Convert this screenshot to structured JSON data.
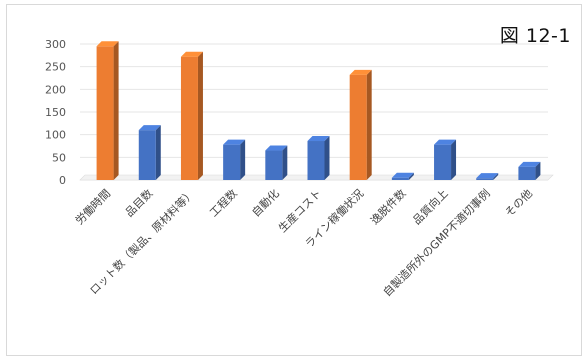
{
  "figure_label": "図 12-1",
  "chart_data": {
    "type": "bar",
    "categories": [
      "労働時間",
      "品目数",
      "ロット数（製品、原材料等）",
      "工程数",
      "自動化",
      "生産コスト",
      "ライン稼働状況",
      "逸脱件数",
      "品質向上",
      "自製造所外のGMP不適切事例",
      "その他"
    ],
    "values": [
      295,
      110,
      272,
      78,
      65,
      86,
      232,
      5,
      78,
      4,
      29
    ],
    "bar_colors": [
      "#ED7D31",
      "#4472C4",
      "#ED7D31",
      "#4472C4",
      "#4472C4",
      "#4472C4",
      "#ED7D31",
      "#4472C4",
      "#4472C4",
      "#4472C4",
      "#4472C4"
    ],
    "y_ticks": [
      0,
      50,
      100,
      150,
      200,
      250,
      300
    ],
    "ylim": [
      0,
      300
    ],
    "grid": true,
    "title": "",
    "xlabel": "",
    "ylabel": ""
  }
}
